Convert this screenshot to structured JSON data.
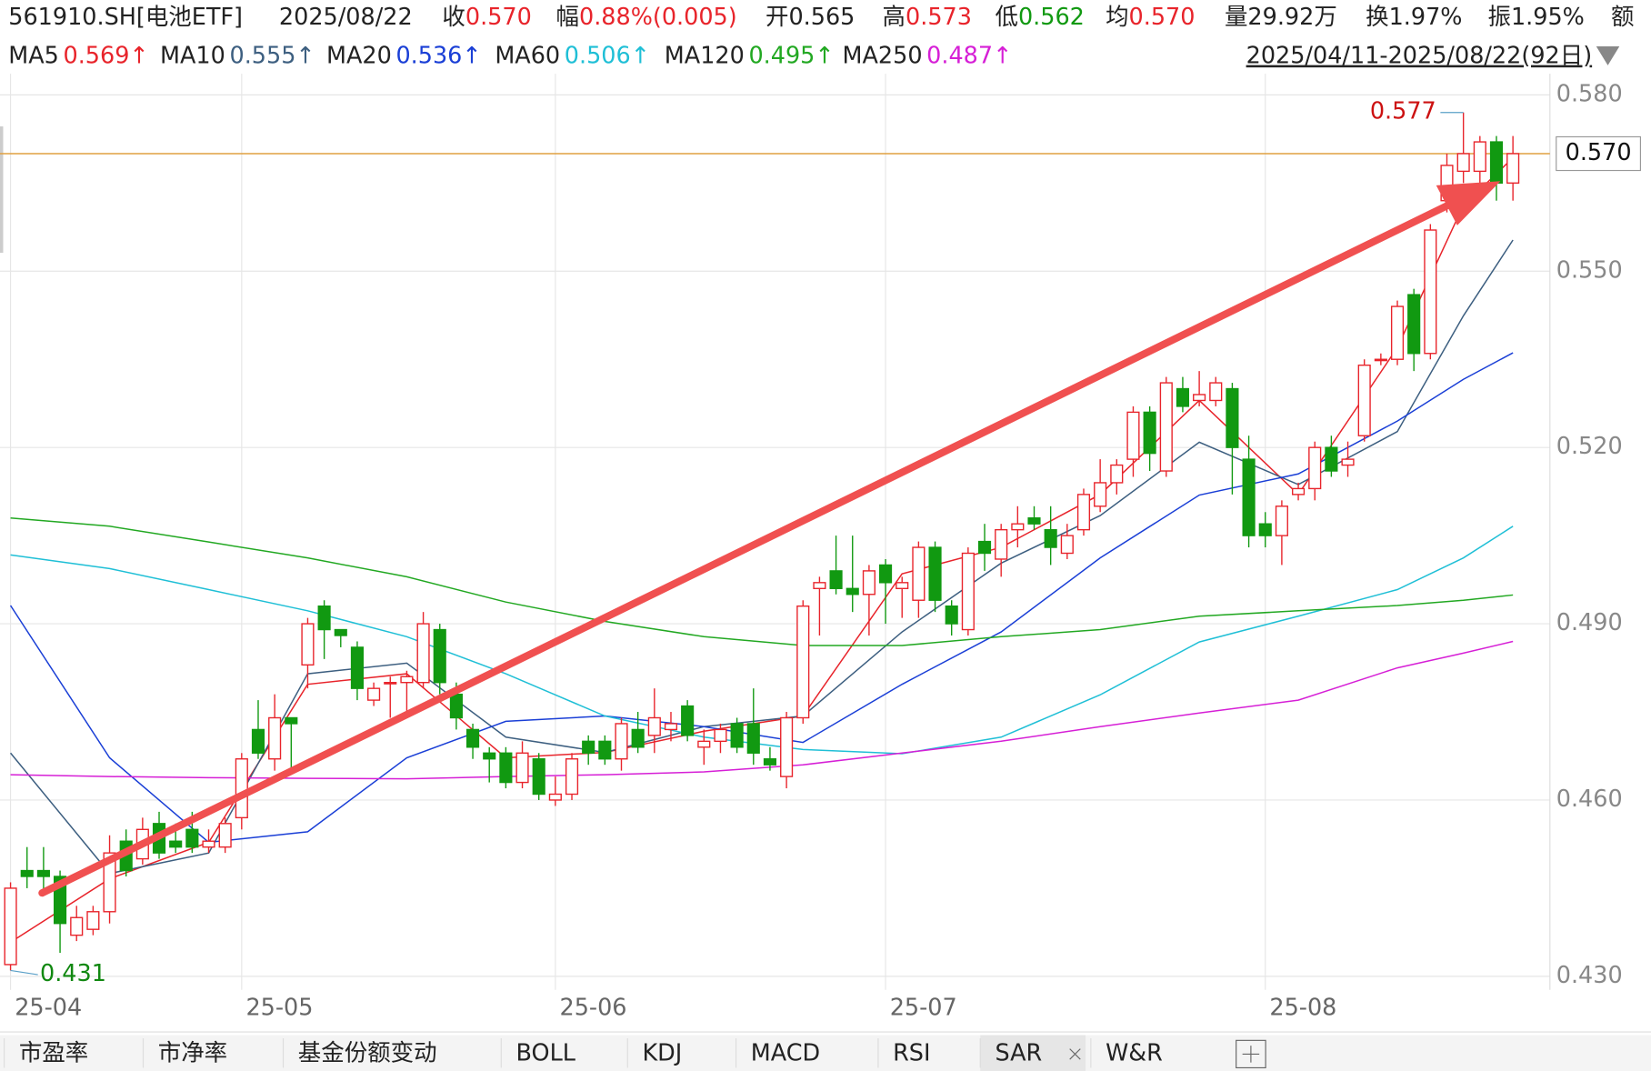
{
  "chart_data": {
    "type": "candlestick",
    "header_items": [
      {
        "label": "561910.SH[电池ETF]",
        "color": "#222222"
      },
      {
        "label": "2025/08/22",
        "color": "#222222"
      },
      {
        "label": "收",
        "value": "0.570",
        "color": "#e8242b"
      },
      {
        "label": "幅",
        "value": "0.88%(0.005)",
        "color": "#e8242b"
      },
      {
        "label": "开0.565",
        "color": "#222222"
      },
      {
        "label": "高",
        "value": "0.573",
        "color": "#e8242b"
      },
      {
        "label": "低",
        "value": "0.562",
        "color": "#119911"
      },
      {
        "label": "均",
        "value": "0.570",
        "color": "#e8242b"
      },
      {
        "label": "量29.92万",
        "color": "#222222"
      },
      {
        "label": "换1.97%",
        "color": "#222222"
      },
      {
        "label": "振1.95%",
        "color": "#222222"
      },
      {
        "label": "额",
        "color": "#222222"
      }
    ],
    "date_range": "2025/04/11-2025/08/22(92日)",
    "categories": [
      "25-04",
      null,
      null,
      null,
      null,
      null,
      null,
      null,
      null,
      null,
      null,
      null,
      null,
      null,
      "25-05",
      null,
      null,
      null,
      null,
      null,
      null,
      null,
      null,
      null,
      null,
      null,
      null,
      null,
      null,
      null,
      null,
      null,
      null,
      "25-06",
      null,
      null,
      null,
      null,
      null,
      null,
      null,
      null,
      null,
      null,
      null,
      null,
      null,
      null,
      null,
      null,
      null,
      null,
      null,
      "25-07",
      null,
      null,
      null,
      null,
      null,
      null,
      null,
      null,
      null,
      null,
      null,
      null,
      null,
      null,
      null,
      null,
      null,
      null,
      null,
      null,
      null,
      null,
      "25-08",
      null,
      null,
      null,
      null,
      null,
      null,
      null,
      null,
      null,
      null,
      null,
      null,
      null,
      null,
      null
    ],
    "open": [
      0.432,
      0.448,
      0.448,
      0.447,
      0.437,
      0.438,
      0.441,
      0.453,
      0.45,
      0.456,
      0.453,
      0.455,
      0.452,
      0.452,
      0.457,
      0.472,
      0.467,
      0.474,
      0.483,
      0.493,
      0.489,
      0.486,
      0.477,
      0.48,
      0.48,
      0.48,
      0.489,
      0.478,
      0.472,
      0.468,
      0.468,
      0.463,
      0.467,
      0.46,
      0.461,
      0.47,
      0.47,
      0.467,
      0.472,
      0.471,
      0.472,
      0.476,
      0.469,
      0.47,
      0.473,
      0.473,
      0.467,
      0.464,
      0.474,
      0.496,
      0.499,
      0.496,
      0.495,
      0.5,
      0.496,
      0.494,
      0.503,
      0.493,
      0.489,
      0.504,
      0.501,
      0.506,
      0.508,
      0.506,
      0.502,
      0.506,
      0.51,
      0.514,
      0.518,
      0.526,
      0.516,
      0.53,
      0.528,
      0.528,
      0.53,
      0.518,
      0.507,
      0.505,
      0.512,
      0.513,
      0.52,
      0.517,
      0.522,
      0.535,
      0.535,
      0.546,
      0.536,
      0.562,
      0.567,
      0.567,
      0.572,
      0.565
    ],
    "high": [
      0.446,
      0.452,
      0.452,
      0.448,
      0.442,
      0.442,
      0.454,
      0.455,
      0.457,
      0.458,
      0.456,
      0.458,
      0.455,
      0.457,
      0.468,
      0.477,
      0.478,
      0.474,
      0.491,
      0.494,
      0.489,
      0.487,
      0.48,
      0.481,
      0.482,
      0.492,
      0.49,
      0.48,
      0.473,
      0.469,
      0.469,
      0.47,
      0.468,
      0.464,
      0.468,
      0.471,
      0.471,
      0.474,
      0.475,
      0.479,
      0.475,
      0.477,
      0.472,
      0.473,
      0.474,
      0.479,
      0.469,
      0.475,
      0.494,
      0.498,
      0.505,
      0.505,
      0.5,
      0.501,
      0.498,
      0.504,
      0.504,
      0.494,
      0.503,
      0.507,
      0.507,
      0.51,
      0.51,
      0.51,
      0.507,
      0.513,
      0.518,
      0.518,
      0.527,
      0.527,
      0.532,
      0.532,
      0.533,
      0.532,
      0.531,
      0.522,
      0.509,
      0.511,
      0.514,
      0.521,
      0.522,
      0.521,
      0.535,
      0.536,
      0.545,
      0.547,
      0.558,
      0.57,
      0.577,
      0.573,
      0.573,
      0.573
    ],
    "low": [
      0.431,
      0.445,
      0.444,
      0.434,
      0.436,
      0.437,
      0.439,
      0.447,
      0.449,
      0.45,
      0.451,
      0.451,
      0.451,
      0.451,
      0.455,
      0.467,
      0.465,
      0.465,
      0.479,
      0.484,
      0.486,
      0.477,
      0.476,
      0.474,
      0.475,
      0.479,
      0.478,
      0.472,
      0.467,
      0.463,
      0.462,
      0.462,
      0.46,
      0.459,
      0.46,
      0.466,
      0.466,
      0.465,
      0.468,
      0.468,
      0.47,
      0.47,
      0.466,
      0.468,
      0.468,
      0.466,
      0.465,
      0.462,
      0.473,
      0.488,
      0.495,
      0.492,
      0.488,
      0.49,
      0.491,
      0.491,
      0.492,
      0.488,
      0.488,
      0.499,
      0.498,
      0.503,
      0.506,
      0.5,
      0.501,
      0.505,
      0.509,
      0.512,
      0.515,
      0.516,
      0.515,
      0.526,
      0.527,
      0.527,
      0.512,
      0.503,
      0.503,
      0.5,
      0.511,
      0.511,
      0.515,
      0.515,
      0.521,
      0.534,
      0.534,
      0.533,
      0.535,
      0.56,
      0.565,
      0.564,
      0.562,
      0.562
    ],
    "close": [
      0.445,
      0.447,
      0.447,
      0.439,
      0.44,
      0.441,
      0.451,
      0.448,
      0.455,
      0.451,
      0.452,
      0.452,
      0.453,
      0.456,
      0.467,
      0.468,
      0.474,
      0.473,
      0.49,
      0.489,
      0.488,
      0.479,
      0.479,
      0.48,
      0.481,
      0.49,
      0.48,
      0.474,
      0.469,
      0.467,
      0.463,
      0.468,
      0.461,
      0.461,
      0.467,
      0.468,
      0.467,
      0.473,
      0.469,
      0.474,
      0.473,
      0.471,
      0.47,
      0.472,
      0.469,
      0.468,
      0.466,
      0.474,
      0.493,
      0.497,
      0.496,
      0.495,
      0.499,
      0.497,
      0.497,
      0.503,
      0.494,
      0.49,
      0.502,
      0.502,
      0.506,
      0.507,
      0.507,
      0.503,
      0.505,
      0.512,
      0.514,
      0.517,
      0.526,
      0.519,
      0.531,
      0.527,
      0.529,
      0.531,
      0.52,
      0.505,
      0.505,
      0.51,
      0.513,
      0.52,
      0.516,
      0.518,
      0.534,
      0.535,
      0.544,
      0.536,
      0.557,
      0.568,
      0.57,
      0.572,
      0.565,
      0.57
    ],
    "up_color": "#e8242b",
    "down_color": "#119911",
    "series": [
      {
        "name": "MA5",
        "legend_value": "0.569↑",
        "color": "#e8242b",
        "x": [
          0,
          6,
          12,
          18,
          24,
          30,
          36,
          42,
          48,
          54,
          60,
          66,
          72,
          78,
          84,
          88,
          91
        ],
        "values": [
          0.4358,
          0.4466,
          0.4528,
          0.4797,
          0.4815,
          0.4672,
          0.4681,
          0.4717,
          0.4743,
          0.4985,
          0.503,
          0.512,
          0.528,
          0.512,
          0.537,
          0.5612,
          0.5693
        ]
      },
      {
        "name": "MA10",
        "legend_value": "0.555↑",
        "color": "#3d5f80",
        "x": [
          0,
          6,
          12,
          18,
          24,
          30,
          36,
          42,
          48,
          54,
          60,
          66,
          72,
          78,
          84,
          88,
          91
        ],
        "values": [
          0.468,
          0.4475,
          0.451,
          0.4815,
          0.4833,
          0.4707,
          0.4681,
          0.4725,
          0.4743,
          0.4886,
          0.5003,
          0.5084,
          0.5209,
          0.5137,
          0.5227,
          0.5424,
          0.5553
        ]
      },
      {
        "name": "MA20",
        "legend_value": "0.536↑",
        "color": "#1a3fd6",
        "x": [
          0,
          6,
          12,
          18,
          24,
          30,
          36,
          42,
          48,
          54,
          60,
          66,
          72,
          78,
          84,
          88,
          91
        ],
        "values": [
          0.4931,
          0.4672,
          0.4528,
          0.4546,
          0.4672,
          0.4734,
          0.4743,
          0.4725,
          0.4698,
          0.4797,
          0.4886,
          0.5012,
          0.5119,
          0.5155,
          0.5245,
          0.5316,
          0.5361
        ]
      },
      {
        "name": "MA60",
        "legend_value": "0.506↑",
        "color": "#1fbfd6",
        "x": [
          0,
          6,
          12,
          18,
          24,
          30,
          36,
          42,
          48,
          54,
          60,
          66,
          72,
          78,
          84,
          88,
          91
        ],
        "values": [
          0.5017,
          0.4994,
          0.4958,
          0.4922,
          0.4878,
          0.4815,
          0.4743,
          0.4707,
          0.4686,
          0.4679,
          0.4707,
          0.4779,
          0.4869,
          0.4913,
          0.4958,
          0.5012,
          0.5066
        ]
      },
      {
        "name": "MA120",
        "legend_value": "0.495↑",
        "color": "#22a822",
        "x": [
          0,
          6,
          12,
          18,
          24,
          30,
          36,
          42,
          48,
          54,
          60,
          66,
          72,
          78,
          84,
          88,
          91
        ],
        "values": [
          0.508,
          0.5066,
          0.5039,
          0.5012,
          0.498,
          0.4937,
          0.4904,
          0.4878,
          0.4863,
          0.4863,
          0.4878,
          0.489,
          0.4913,
          0.4922,
          0.4931,
          0.494,
          0.4949
        ]
      },
      {
        "name": "MA250",
        "legend_value": "0.487↑",
        "color": "#d61fd6",
        "x": [
          0,
          6,
          12,
          18,
          24,
          30,
          36,
          42,
          48,
          54,
          60,
          66,
          72,
          78,
          84,
          88,
          91
        ],
        "values": [
          0.4643,
          0.464,
          0.4638,
          0.4637,
          0.4636,
          0.464,
          0.4643,
          0.4648,
          0.466,
          0.468,
          0.47,
          0.4725,
          0.4748,
          0.477,
          0.4825,
          0.485,
          0.487
        ]
      }
    ],
    "ylim": [
      0.4277,
      0.5818
    ],
    "yticks": [
      {
        "value": 0.58,
        "label": "0.580"
      },
      {
        "value": 0.55,
        "label": "0.550"
      },
      {
        "value": 0.52,
        "label": "0.520"
      },
      {
        "value": 0.49,
        "label": "0.490"
      },
      {
        "value": 0.46,
        "label": "0.460"
      },
      {
        "value": 0.43,
        "label": "0.430"
      }
    ],
    "grid": true,
    "last_price": {
      "value": 0.57,
      "label": "0.570",
      "color": "#e0a040"
    },
    "high_mark": {
      "index": 88,
      "value": 0.577
    },
    "low_mark": {
      "index": 0,
      "value": 0.431
    },
    "tabs": [
      "市盈率",
      "市净率",
      "基金份额变动",
      "BOLL",
      "KDJ",
      "MACD",
      "RSI",
      "SAR",
      "W&R"
    ],
    "active_tab": 7
  }
}
